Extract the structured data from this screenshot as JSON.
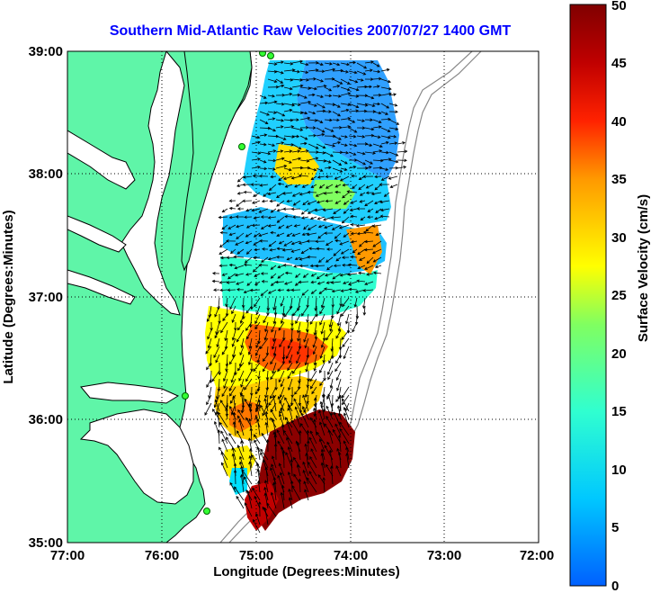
{
  "title": "Southern Mid-Atlantic Raw Velocities 2007/07/27 1400 GMT",
  "x_axis": {
    "label": "Longitude (Degrees:Minutes)",
    "ticks": [
      "77:00",
      "76:00",
      "75:00",
      "74:00",
      "73:00",
      "72:00"
    ]
  },
  "y_axis": {
    "label": "Latitude (Degrees:Minutes)",
    "ticks": [
      "39:00",
      "38:00",
      "37:00",
      "36:00",
      "35:00"
    ]
  },
  "colorbar": {
    "label": "Surface Velocity (cm/s)",
    "ticks": [
      "50",
      "45",
      "40",
      "35",
      "30",
      "25",
      "20",
      "15",
      "10",
      "5",
      "0"
    ],
    "range": [
      0,
      50
    ]
  },
  "colors": {
    "land": "#5ff5a8",
    "title": "#0000ff",
    "grid": "#000000"
  },
  "map_extent": {
    "lon": [
      -77,
      -72
    ],
    "lat": [
      35,
      39
    ]
  }
}
